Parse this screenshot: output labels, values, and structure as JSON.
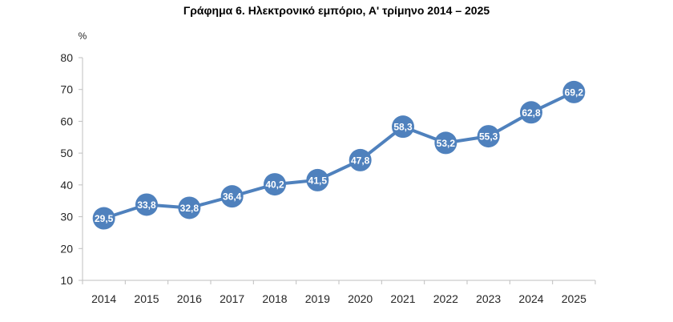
{
  "chart_data": {
    "type": "line",
    "title": "Γράφημα 6. Ηλεκτρονικό εμπόριο, Α' τρίμηνο 2014 – 2025",
    "ylabel": "%",
    "xlabel": "",
    "categories": [
      "2014",
      "2015",
      "2016",
      "2017",
      "2018",
      "2019",
      "2020",
      "2021",
      "2022",
      "2023",
      "2024",
      "2025"
    ],
    "series": [
      {
        "values": [
          29.5,
          33.8,
          32.8,
          36.4,
          40.2,
          41.5,
          47.8,
          58.3,
          53.2,
          55.3,
          62.8,
          69.2
        ],
        "data_labels": [
          "29,5",
          "33,8",
          "32,8",
          "36,4",
          "40,2",
          "41,5",
          "47,8",
          "58,3",
          "53,2",
          "55,3",
          "62,8",
          "69,2"
        ]
      }
    ],
    "ylim": [
      10,
      80
    ],
    "yticks": [
      10,
      20,
      30,
      40,
      50,
      60,
      70,
      80
    ],
    "grid": false,
    "legend": "none",
    "colors": {
      "line": "#4f81bd",
      "marker": "#4f81bd",
      "axis": "#bfbfbf",
      "label": "#ffffff"
    }
  }
}
